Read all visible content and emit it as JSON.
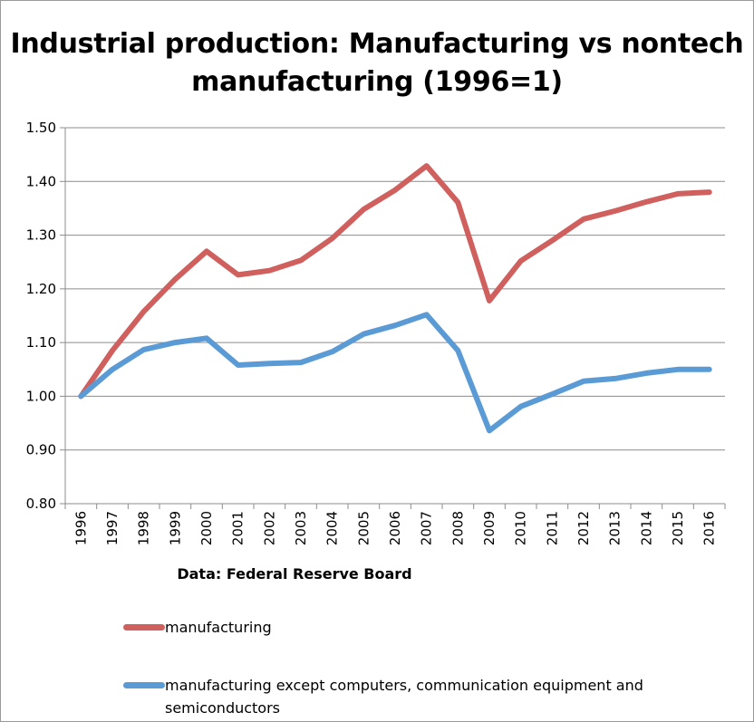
{
  "chart_data": {
    "type": "line",
    "title": "Industrial production: Manufacturing vs nontech manufacturing (1996=1)",
    "xlabel": "Data: Federal Reserve Board",
    "ylabel": "",
    "ylim": [
      0.8,
      1.5
    ],
    "yticks": [
      "0.80",
      "0.90",
      "1.00",
      "1.10",
      "1.20",
      "1.30",
      "1.40",
      "1.50"
    ],
    "grid": true,
    "legend_position": "bottom",
    "x": [
      "1996",
      "1997",
      "1998",
      "1999",
      "2000",
      "2001",
      "2002",
      "2003",
      "2004",
      "2005",
      "2006",
      "2007",
      "2008",
      "2009",
      "2010",
      "2011",
      "2012",
      "2013",
      "2014",
      "2015",
      "2016"
    ],
    "series": [
      {
        "name": "manufacturing",
        "color": "#d0605e",
        "values": [
          1.0,
          1.085,
          1.158,
          1.218,
          1.27,
          1.226,
          1.234,
          1.253,
          1.294,
          1.348,
          1.384,
          1.429,
          1.361,
          1.178,
          1.252,
          1.29,
          1.33,
          1.345,
          1.362,
          1.377,
          1.38
        ]
      },
      {
        "name": "manufacturing except computers, communication equipment and semiconductors",
        "color": "#5b9bd5",
        "values": [
          1.0,
          1.05,
          1.087,
          1.1,
          1.108,
          1.058,
          1.061,
          1.063,
          1.083,
          1.116,
          1.132,
          1.152,
          1.085,
          0.936,
          0.981,
          1.004,
          1.028,
          1.033,
          1.043,
          1.05,
          1.05
        ]
      }
    ]
  }
}
